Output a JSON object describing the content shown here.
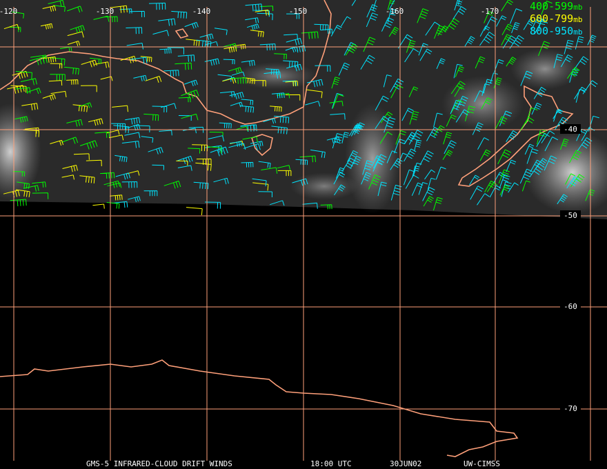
{
  "map": {
    "lon_labels": [
      "-120",
      "-130",
      "-140",
      "-150",
      "-160",
      "-170"
    ],
    "lat_labels": [
      "-40",
      "-50",
      "-60",
      "-70"
    ],
    "legend": [
      {
        "label": "400-599",
        "unit": "mb",
        "color": "#00ff00"
      },
      {
        "label": "600-799",
        "unit": "mb",
        "color": "#ffff00"
      },
      {
        "label": "800-950",
        "unit": "mb",
        "color": "#00e5ff"
      }
    ],
    "footer": [
      "GMS-5 INFRARED-CLOUD DRIFT WINDS",
      "18:00 UTC",
      "30JUN02",
      "UW-CIMSS"
    ]
  }
}
